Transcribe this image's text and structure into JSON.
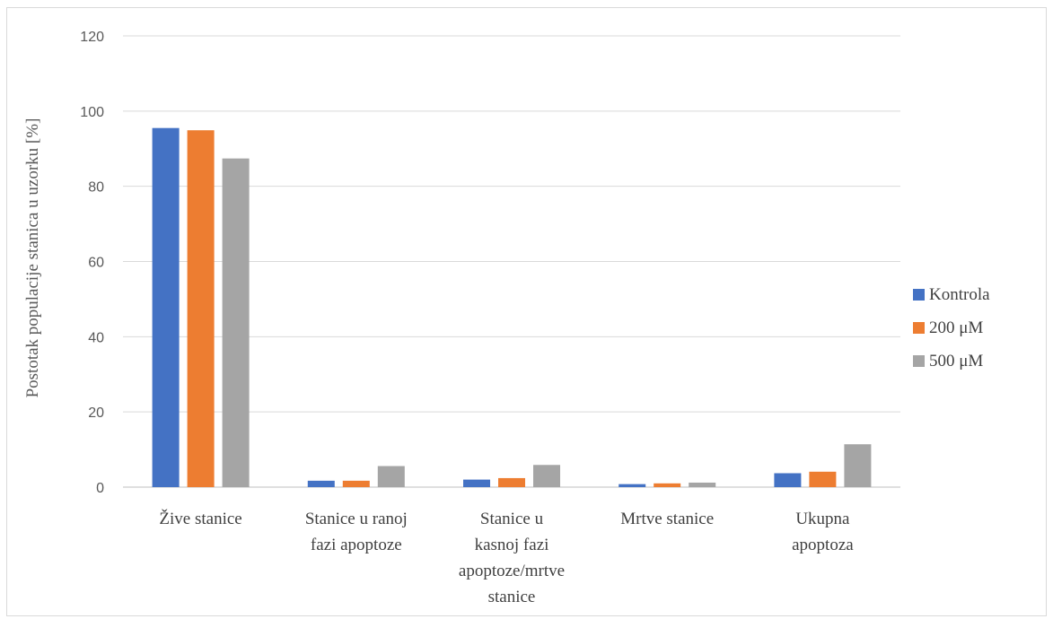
{
  "chart_data": {
    "type": "bar",
    "title": "",
    "xlabel": "",
    "ylabel": "Postotak populacije stanica u uzorku [%]",
    "ylim": [
      0,
      120
    ],
    "yticks": [
      "0",
      "20",
      "40",
      "60",
      "80",
      "100",
      "120"
    ],
    "grid": true,
    "legend_position": "right",
    "categories": [
      [
        "Žive stanice"
      ],
      [
        "Stanice u ranoj",
        "fazi apoptoze"
      ],
      [
        "Stanice u",
        "kasnoj fazi",
        "apoptoze/mrtve",
        "stanice"
      ],
      [
        "Mrtve stanice"
      ],
      [
        "Ukupna",
        "apoptoza"
      ]
    ],
    "series": [
      {
        "name": "Kontrola",
        "color": "#4472c4",
        "values": [
          95.5,
          1.7,
          2.0,
          0.8,
          3.7
        ]
      },
      {
        "name": "200 μM",
        "color": "#ed7d31",
        "values": [
          94.9,
          1.7,
          2.4,
          1.0,
          4.1
        ]
      },
      {
        "name": "500 μM",
        "color": "#a5a5a5",
        "values": [
          87.4,
          5.6,
          5.9,
          1.2,
          11.4
        ]
      }
    ]
  }
}
